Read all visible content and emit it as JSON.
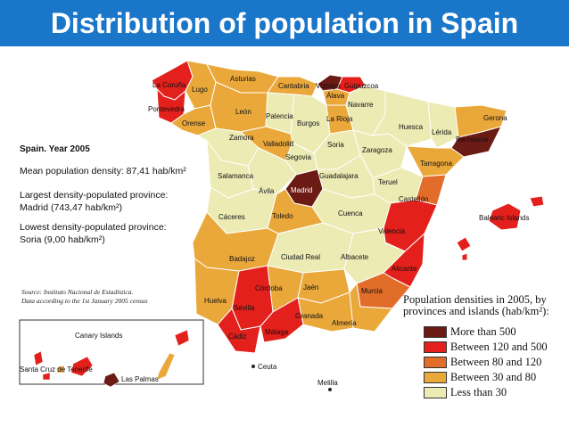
{
  "title": "Distribution of population in Spain",
  "info": {
    "heading": "Spain. Year 2005",
    "mean": "Mean population density: 87,41 hab/km²",
    "largest_1": "Largest density-populated province:",
    "largest_2": "Madrid (743,47 hab/km²)",
    "lowest_1": "Lowest density-populated province:",
    "lowest_2": "Soria (9,00 hab/km²)"
  },
  "source_1": "Source: Instituto Nacional de Estadística.",
  "source_2": "Data according to the 1st January 2005 census",
  "legend": {
    "title_1": "Population densities in 2005, by",
    "title_2": "provinces and islands (hab/km²):",
    "items": [
      {
        "label": "More than 500",
        "color": "#6b1a14"
      },
      {
        "label": "Between 120 and 500",
        "color": "#e3201c"
      },
      {
        "label": "Between 80 and 120",
        "color": "#e26c2a"
      },
      {
        "label": "Between 30 and 80",
        "color": "#eaa83b"
      },
      {
        "label": "Less than 30",
        "color": "#ecebb4"
      }
    ]
  },
  "labels": {
    "la_coruna": "La Coruña",
    "lugo": "Lugo",
    "asturias": "Asturias",
    "cantabria": "Cantabria",
    "vizcaya": "Vizcaya",
    "guipuzcoa": "Guipuzcoa",
    "pontevedra": "Pontevedra",
    "alava": "Álava",
    "navarre": "Navarre",
    "orense": "Orense",
    "leon": "León",
    "palencia": "Palencia",
    "burgos": "Burgos",
    "la_rioja": "La Rioja",
    "huesca": "Huesca",
    "lerida": "Lérida",
    "gerona": "Gerona",
    "barcelona": "Barcelona",
    "zamora": "Zamora",
    "valladolid": "Valladolid",
    "soria": "Soria",
    "zaragoza": "Zaragoza",
    "segovia": "Segovia",
    "tarragona": "Tarragona",
    "salamanca": "Salamanca",
    "guadalajara": "Guadalajara",
    "teruel": "Teruel",
    "avila": "Ávila",
    "madrid": "Madrid",
    "castellon": "Castellón",
    "caceres": "Cáceres",
    "toledo": "Toledo",
    "cuenca": "Cuenca",
    "valencia": "Valencia",
    "balearic": "Balearic Islands",
    "badajoz": "Badajoz",
    "ciudad_real": "Ciudad Real",
    "albacete": "Albacete",
    "alicante": "Alicante",
    "cordoba": "Córdoba",
    "jaen": "Jaén",
    "murcia": "Murcia",
    "huelva": "Huelva",
    "sevilla": "Sevilla",
    "granada": "Granada",
    "almeria": "Almería",
    "cadiz": "Cádiz",
    "malaga": "Málaga",
    "ceuta": "Ceuta",
    "melilla": "Melilla",
    "canary": "Canary Islands",
    "tenerife": "Santa Cruz de Tenerife",
    "las_palmas": "Las Palmas"
  }
}
